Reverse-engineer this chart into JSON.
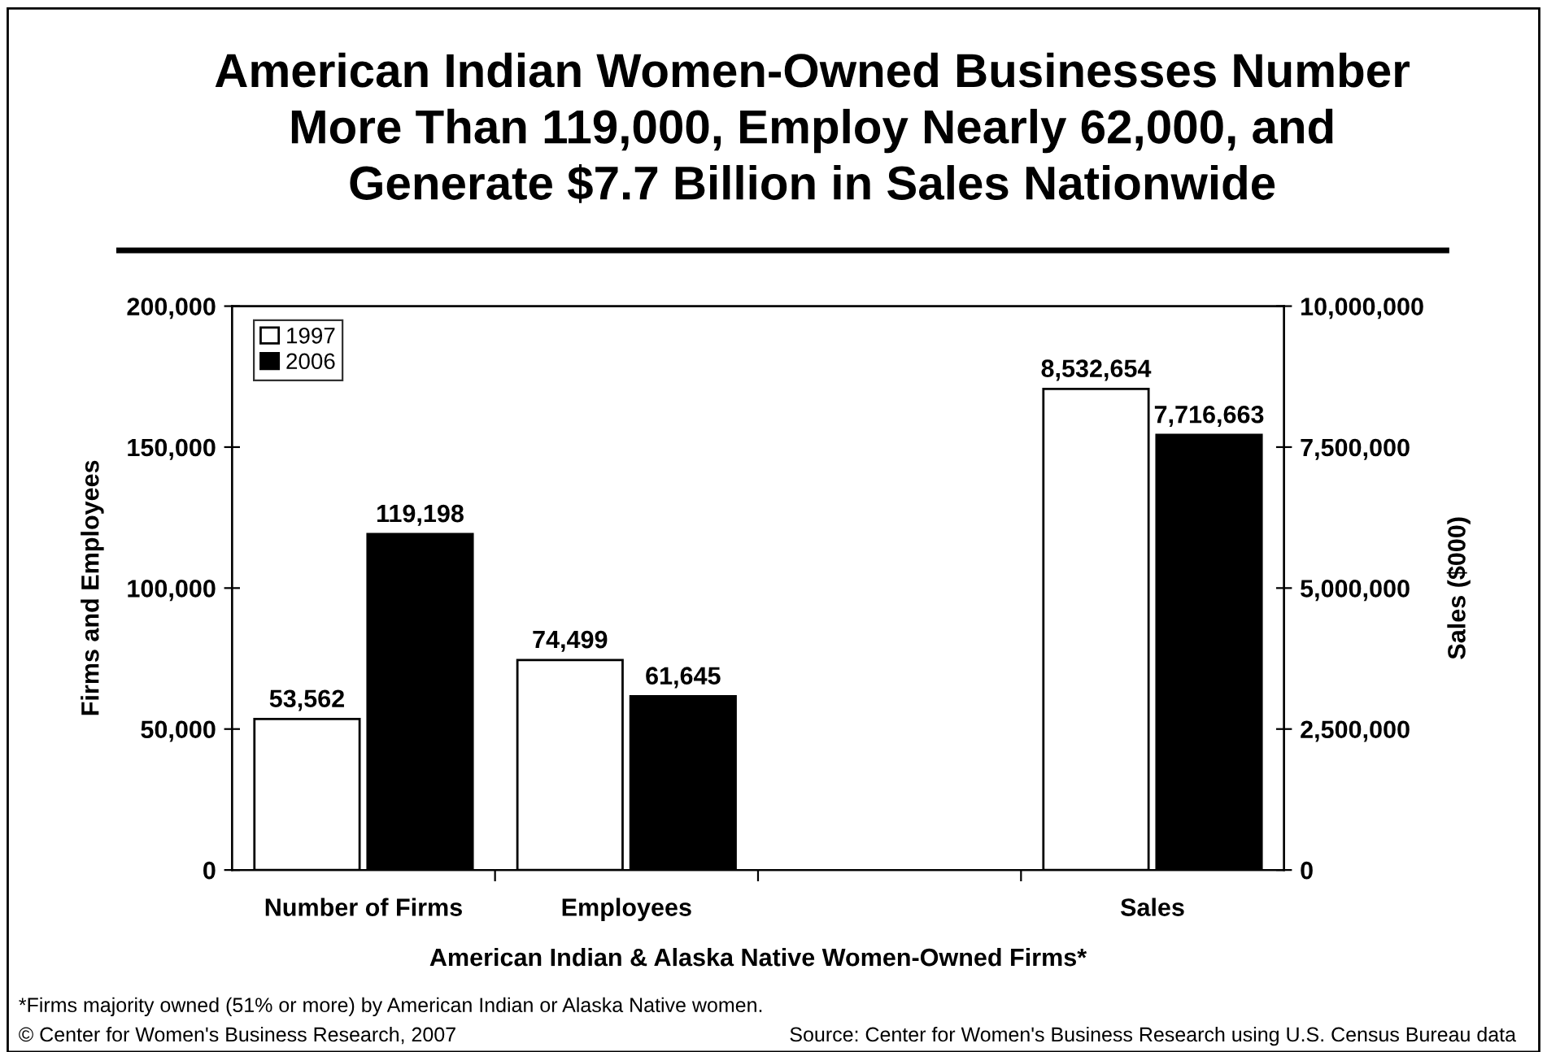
{
  "chart_data": {
    "type": "bar",
    "title": "American Indian Women-Owned Businesses Number\nMore Than 119,000, Employ Nearly 62,000, and\nGenerate $7.7 Billion in Sales Nationwide",
    "categories": [
      "Number of Firms",
      "Employees",
      null,
      "Sales"
    ],
    "xlabel": "American Indian & Alaska Native Women-Owned Firms*",
    "ylabel": "Firms and Employees",
    "y2label": "Sales ($000)",
    "series": [
      {
        "name": "1997",
        "color": "#ffffff",
        "values": [
          53562,
          74499,
          null,
          null
        ],
        "value_labels": [
          "53,562",
          "74,499",
          null,
          null
        ]
      },
      {
        "name": "2006",
        "color": "#000000",
        "values": [
          119198,
          61645,
          null,
          null
        ],
        "value_labels": [
          "119,198",
          "61,645",
          null,
          null
        ]
      },
      {
        "color": "#ffffff",
        "axis": "y2",
        "values": [
          null,
          null,
          null,
          8532654
        ],
        "value_labels": [
          null,
          null,
          null,
          "8,532,654"
        ]
      },
      {
        "color": "#000000",
        "axis": "y2",
        "values": [
          null,
          null,
          null,
          7716663
        ],
        "value_labels": [
          null,
          null,
          null,
          "7,716,663"
        ]
      }
    ],
    "ylim": [
      0,
      200000
    ],
    "yticks": [
      {
        "value": 0,
        "label": "0"
      },
      {
        "value": 50000,
        "label": "50,000"
      },
      {
        "value": 100000,
        "label": "100,000"
      },
      {
        "value": 150000,
        "label": "150,000"
      },
      {
        "value": 200000,
        "label": "200,000"
      }
    ],
    "y2lim": [
      0,
      10000000
    ],
    "y2ticks": [
      {
        "value": 0,
        "label": "0"
      },
      {
        "value": 2500000,
        "label": "2,500,000"
      },
      {
        "value": 5000000,
        "label": "5,000,000"
      },
      {
        "value": 7500000,
        "label": "7,500,000"
      },
      {
        "value": 10000000,
        "label": "10,000,000"
      }
    ],
    "legend": "top left",
    "grid": false,
    "annotations": [
      "*Firms majority owned (51% or more) by American Indian or Alaska Native women.",
      "© Center for Women's Business Research, 2007",
      "Source: Center for Women's Business Research using U.S. Census Bureau data"
    ]
  }
}
